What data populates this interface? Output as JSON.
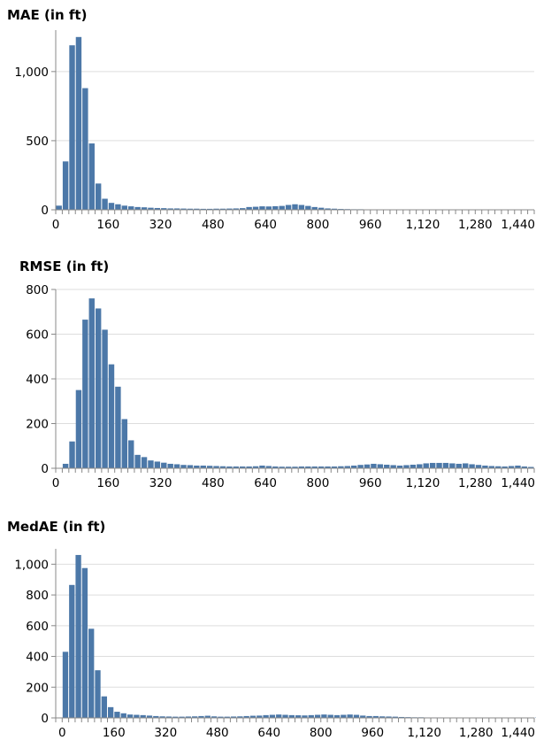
{
  "colors": {
    "bar": "#4c78a8",
    "grid": "#dddddd",
    "axis": "#888888"
  },
  "chart_data": [
    {
      "type": "bar",
      "title": "MAE (in ft)",
      "bin_width": 20,
      "x_domain": [
        0,
        1460
      ],
      "x_ticks": [
        0,
        160,
        320,
        480,
        640,
        800,
        960,
        1120,
        1280,
        1440
      ],
      "x_tick_labels": [
        "0",
        "160",
        "320",
        "480",
        "640",
        "800",
        "960",
        "1,120",
        "1,280",
        "1,440"
      ],
      "ylim": [
        0,
        1300
      ],
      "y_ticks": [
        0,
        500,
        1000
      ],
      "y_tick_labels": [
        "0",
        "500",
        "1,000"
      ],
      "grid": true,
      "values": [
        30,
        350,
        1190,
        1250,
        880,
        480,
        190,
        80,
        50,
        40,
        30,
        25,
        20,
        18,
        15,
        13,
        12,
        10,
        10,
        9,
        8,
        8,
        7,
        7,
        8,
        8,
        9,
        10,
        12,
        20,
        22,
        25,
        24,
        26,
        28,
        35,
        40,
        35,
        28,
        20,
        15,
        10,
        8,
        6,
        5,
        4,
        4,
        3,
        3,
        3,
        2,
        2,
        2,
        2,
        2,
        2,
        2,
        2,
        2,
        2,
        2,
        2,
        2,
        2,
        2,
        2,
        2,
        2,
        2,
        2,
        2,
        2,
        2
      ]
    },
    {
      "type": "bar",
      "title": "RMSE (in ft)",
      "bin_width": 20,
      "x_domain": [
        0,
        1460
      ],
      "x_ticks": [
        0,
        160,
        320,
        480,
        640,
        800,
        960,
        1120,
        1280,
        1440
      ],
      "x_tick_labels": [
        "0",
        "160",
        "320",
        "480",
        "640",
        "800",
        "960",
        "1,120",
        "1,280",
        "1,440"
      ],
      "ylim": [
        0,
        800
      ],
      "y_ticks": [
        0,
        200,
        400,
        600,
        800
      ],
      "y_tick_labels": [
        "0",
        "200",
        "400",
        "600",
        "800"
      ],
      "grid": true,
      "values": [
        0,
        20,
        120,
        350,
        665,
        760,
        715,
        620,
        465,
        365,
        220,
        125,
        60,
        50,
        35,
        30,
        25,
        20,
        18,
        15,
        14,
        12,
        12,
        11,
        10,
        9,
        8,
        8,
        8,
        8,
        9,
        12,
        10,
        8,
        7,
        7,
        7,
        8,
        8,
        8,
        8,
        8,
        8,
        9,
        10,
        12,
        15,
        17,
        20,
        18,
        16,
        14,
        12,
        14,
        16,
        18,
        22,
        24,
        24,
        24,
        22,
        20,
        22,
        18,
        15,
        12,
        10,
        9,
        8,
        10,
        12,
        8,
        6
      ]
    },
    {
      "type": "bar",
      "title": "MedAE (in ft)",
      "bin_width": 20,
      "x_domain": [
        -20,
        1460
      ],
      "x_ticks": [
        0,
        160,
        320,
        480,
        640,
        800,
        960,
        1120,
        1280,
        1440
      ],
      "x_tick_labels": [
        "0",
        "160",
        "320",
        "480",
        "640",
        "800",
        "960",
        "1,120",
        "1,280",
        "1,440"
      ],
      "ylim": [
        0,
        1100
      ],
      "y_ticks": [
        0,
        200,
        400,
        600,
        800,
        1000
      ],
      "y_tick_labels": [
        "0",
        "200",
        "400",
        "600",
        "800",
        "1,000"
      ],
      "grid": true,
      "values": [
        430,
        865,
        1060,
        975,
        580,
        310,
        140,
        70,
        40,
        30,
        22,
        20,
        18,
        15,
        12,
        10,
        9,
        8,
        8,
        9,
        10,
        12,
        14,
        10,
        8,
        8,
        9,
        10,
        12,
        14,
        15,
        18,
        20,
        22,
        20,
        18,
        17,
        16,
        18,
        20,
        22,
        20,
        18,
        20,
        22,
        20,
        15,
        12,
        12,
        10,
        9,
        8,
        6,
        5,
        4,
        4,
        3,
        3,
        3,
        2,
        2,
        2,
        2,
        2,
        2,
        2,
        2,
        2,
        2,
        2,
        2,
        2,
        2,
        2
      ]
    }
  ]
}
